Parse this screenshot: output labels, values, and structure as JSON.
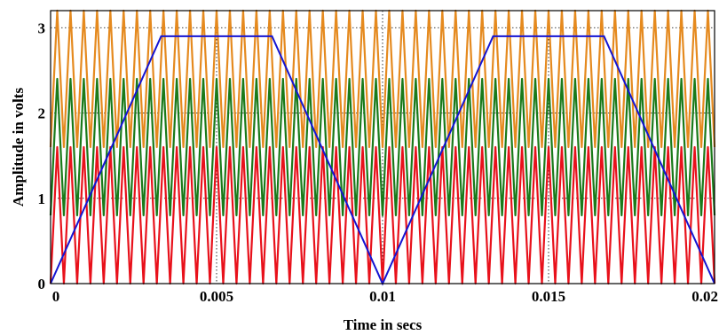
{
  "chart_data": {
    "type": "line",
    "title": "",
    "xlabel": "Time in secs",
    "ylabel": "Amplitude in volts",
    "xlim": [
      0,
      0.02
    ],
    "ylim": [
      0,
      3.2
    ],
    "x_ticks": [
      0,
      0.005,
      0.01,
      0.015,
      0.02
    ],
    "x_tick_labels": [
      "0",
      "0.005",
      "0.01",
      "0.015",
      "0.02"
    ],
    "y_ticks": [
      0,
      1,
      2,
      3
    ],
    "y_tick_labels": [
      "0",
      "1",
      "2",
      "3"
    ],
    "grid": true,
    "legend": "none",
    "carrier_cycles": 50,
    "series": [
      {
        "color": "#e8111b",
        "kind": "triangular carrier",
        "min": 0,
        "max": 1.6
      },
      {
        "color": "#1a7a1a",
        "kind": "triangular carrier",
        "min": 0.8,
        "max": 2.4
      },
      {
        "color": "#e58a1f",
        "kind": "triangular carrier",
        "min": 1.6,
        "max": 3.2
      },
      {
        "color": "#1414d2",
        "kind": "trapezoidal reference",
        "x": [
          0,
          0.00333,
          0.00667,
          0.01,
          0.01333,
          0.01667,
          0.02
        ],
        "y": [
          0,
          2.9,
          2.9,
          0,
          2.9,
          2.9,
          0
        ]
      }
    ]
  }
}
